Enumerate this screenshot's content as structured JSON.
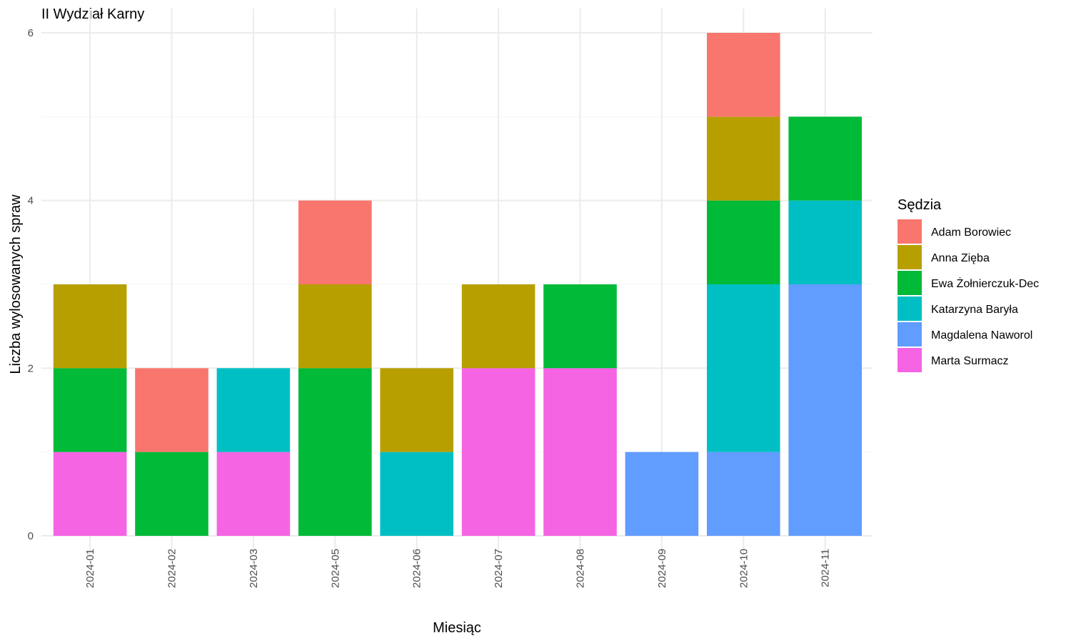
{
  "chart_data": {
    "type": "bar",
    "stacked": true,
    "title": "II Wydział Karny",
    "xlabel": "Miesiąc",
    "ylabel": "Liczba wylosowanych spraw",
    "legend_title": "Sędzia",
    "legend_position": "right",
    "grid": true,
    "ylim": [
      0,
      6
    ],
    "yticks": [
      0,
      2,
      4,
      6
    ],
    "categories": [
      "2024-01",
      "2024-02",
      "2024-03",
      "2024-05",
      "2024-06",
      "2024-07",
      "2024-08",
      "2024-09",
      "2024-10",
      "2024-11"
    ],
    "series": [
      {
        "name": "Adam Borowiec",
        "color": "#F8766D",
        "values": [
          0,
          1,
          0,
          1,
          0,
          0,
          0,
          0,
          1,
          0
        ]
      },
      {
        "name": "Anna Zięba",
        "color": "#B79F00",
        "values": [
          1,
          0,
          0,
          1,
          1,
          1,
          0,
          0,
          1,
          0
        ]
      },
      {
        "name": "Ewa Żołnierczuk-Dec",
        "color": "#00BA38",
        "values": [
          1,
          1,
          0,
          2,
          0,
          0,
          1,
          0,
          1,
          1
        ]
      },
      {
        "name": "Katarzyna Baryła",
        "color": "#00BFC4",
        "values": [
          0,
          0,
          1,
          0,
          1,
          0,
          0,
          0,
          2,
          1
        ]
      },
      {
        "name": "Magdalena Naworol",
        "color": "#619CFF",
        "values": [
          0,
          0,
          0,
          0,
          0,
          0,
          0,
          1,
          1,
          3
        ]
      },
      {
        "name": "Marta Surmacz",
        "color": "#F564E3",
        "values": [
          1,
          0,
          1,
          0,
          0,
          2,
          2,
          0,
          0,
          0
        ]
      }
    ]
  }
}
